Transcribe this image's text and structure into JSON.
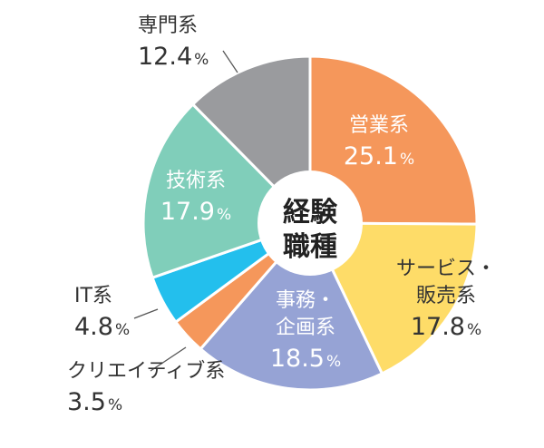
{
  "chart_data": {
    "type": "pie",
    "variant": "donut",
    "center_label": [
      "経験",
      "職種"
    ],
    "start_angle_deg": 0,
    "direction": "clockwise",
    "unit": "%",
    "slices": [
      {
        "name": "営業系",
        "value": 25.1,
        "value_text": "25.1",
        "color": "#F5975B",
        "label_lines": [
          "営業系"
        ],
        "label_color": "#FFFFFF",
        "label_placement": "inside"
      },
      {
        "name": "サービス・販売系",
        "value": 17.8,
        "value_text": "17.8",
        "color": "#FEDC68",
        "label_lines": [
          "サービス・",
          "販売系"
        ],
        "label_color": "#333333",
        "label_placement": "inside"
      },
      {
        "name": "事務・企画系",
        "value": 18.5,
        "value_text": "18.5",
        "color": "#96A3D5",
        "label_lines": [
          "事務・",
          "企画系"
        ],
        "label_color": "#FFFFFF",
        "label_placement": "inside"
      },
      {
        "name": "クリエイティブ系",
        "value": 3.5,
        "value_text": "3.5",
        "color": "#F5975B",
        "label_lines": [
          "クリエイティブ系"
        ],
        "label_color": "#333333",
        "label_placement": "outside"
      },
      {
        "name": "IT系",
        "value": 4.8,
        "value_text": "4.8",
        "color": "#23BFED",
        "label_lines": [
          "IT系"
        ],
        "label_color": "#333333",
        "label_placement": "outside"
      },
      {
        "name": "技術系",
        "value": 17.9,
        "value_text": "17.9",
        "color": "#80CEBA",
        "label_lines": [
          "技術系"
        ],
        "label_color": "#FFFFFF",
        "label_placement": "inside"
      },
      {
        "name": "専門系",
        "value": 12.4,
        "value_text": "12.4",
        "color": "#9A9B9E",
        "label_lines": [
          "専門系"
        ],
        "label_color": "#333333",
        "label_placement": "outside"
      }
    ]
  }
}
